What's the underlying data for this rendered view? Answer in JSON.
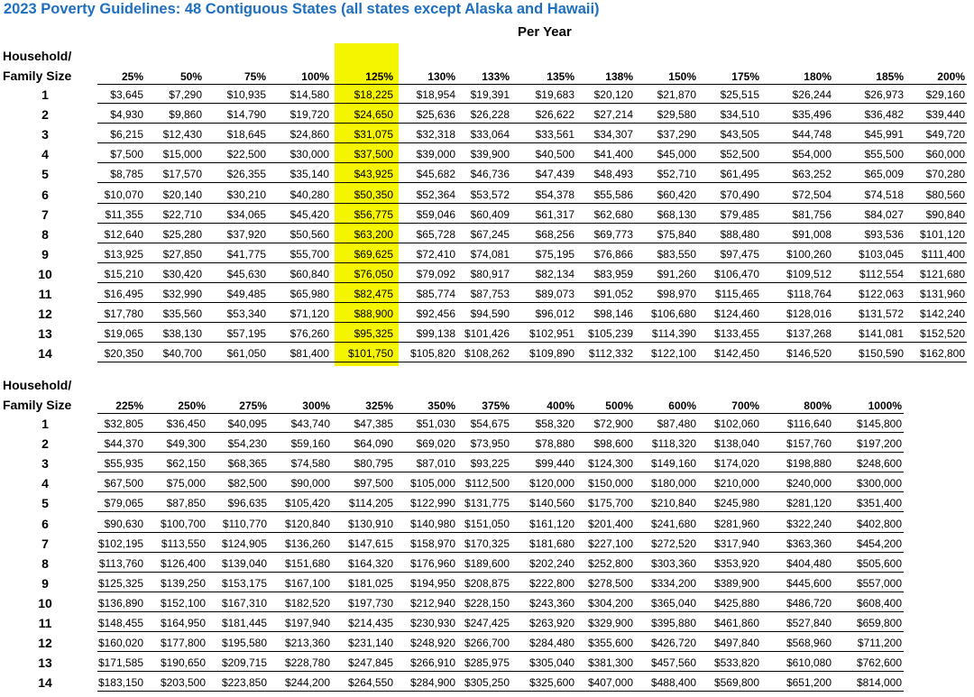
{
  "title": "2023 Poverty Guidelines: 48 Contiguous States (all states except Alaska and Hawaii)",
  "subtitle": "Per Year",
  "household_label_1": "Household/",
  "household_label_2": "Family Size",
  "highlight_color": "#f6f500",
  "title_color": "#1f6fc0",
  "table1": {
    "headers": [
      "25%",
      "50%",
      "75%",
      "100%",
      "125%",
      "130%",
      "133%",
      "135%",
      "138%",
      "150%",
      "175%",
      "180%",
      "185%",
      "200%"
    ],
    "sizes": [
      "1",
      "2",
      "3",
      "4",
      "5",
      "6",
      "7",
      "8",
      "9",
      "10",
      "11",
      "12",
      "13",
      "14"
    ],
    "rows": [
      [
        "$3,645",
        "$7,290",
        "$10,935",
        "$14,580",
        "$18,225",
        "$18,954",
        "$19,391",
        "$19,683",
        "$20,120",
        "$21,870",
        "$25,515",
        "$26,244",
        "$26,973",
        "$29,160"
      ],
      [
        "$4,930",
        "$9,860",
        "$14,790",
        "$19,720",
        "$24,650",
        "$25,636",
        "$26,228",
        "$26,622",
        "$27,214",
        "$29,580",
        "$34,510",
        "$35,496",
        "$36,482",
        "$39,440"
      ],
      [
        "$6,215",
        "$12,430",
        "$18,645",
        "$24,860",
        "$31,075",
        "$32,318",
        "$33,064",
        "$33,561",
        "$34,307",
        "$37,290",
        "$43,505",
        "$44,748",
        "$45,991",
        "$49,720"
      ],
      [
        "$7,500",
        "$15,000",
        "$22,500",
        "$30,000",
        "$37,500",
        "$39,000",
        "$39,900",
        "$40,500",
        "$41,400",
        "$45,000",
        "$52,500",
        "$54,000",
        "$55,500",
        "$60,000"
      ],
      [
        "$8,785",
        "$17,570",
        "$26,355",
        "$35,140",
        "$43,925",
        "$45,682",
        "$46,736",
        "$47,439",
        "$48,493",
        "$52,710",
        "$61,495",
        "$63,252",
        "$65,009",
        "$70,280"
      ],
      [
        "$10,070",
        "$20,140",
        "$30,210",
        "$40,280",
        "$50,350",
        "$52,364",
        "$53,572",
        "$54,378",
        "$55,586",
        "$60,420",
        "$70,490",
        "$72,504",
        "$74,518",
        "$80,560"
      ],
      [
        "$11,355",
        "$22,710",
        "$34,065",
        "$45,420",
        "$56,775",
        "$59,046",
        "$60,409",
        "$61,317",
        "$62,680",
        "$68,130",
        "$79,485",
        "$81,756",
        "$84,027",
        "$90,840"
      ],
      [
        "$12,640",
        "$25,280",
        "$37,920",
        "$50,560",
        "$63,200",
        "$65,728",
        "$67,245",
        "$68,256",
        "$69,773",
        "$75,840",
        "$88,480",
        "$91,008",
        "$93,536",
        "$101,120"
      ],
      [
        "$13,925",
        "$27,850",
        "$41,775",
        "$55,700",
        "$69,625",
        "$72,410",
        "$74,081",
        "$75,195",
        "$76,866",
        "$83,550",
        "$97,475",
        "$100,260",
        "$103,045",
        "$111,400"
      ],
      [
        "$15,210",
        "$30,420",
        "$45,630",
        "$60,840",
        "$76,050",
        "$79,092",
        "$80,917",
        "$82,134",
        "$83,959",
        "$91,260",
        "$106,470",
        "$109,512",
        "$112,554",
        "$121,680"
      ],
      [
        "$16,495",
        "$32,990",
        "$49,485",
        "$65,980",
        "$82,475",
        "$85,774",
        "$87,753",
        "$89,073",
        "$91,052",
        "$98,970",
        "$115,465",
        "$118,764",
        "$122,063",
        "$131,960"
      ],
      [
        "$17,780",
        "$35,560",
        "$53,340",
        "$71,120",
        "$88,900",
        "$92,456",
        "$94,590",
        "$96,012",
        "$98,146",
        "$106,680",
        "$124,460",
        "$128,016",
        "$131,572",
        "$142,240"
      ],
      [
        "$19,065",
        "$38,130",
        "$57,195",
        "$76,260",
        "$95,325",
        "$99,138",
        "$101,426",
        "$102,951",
        "$105,239",
        "$114,390",
        "$133,455",
        "$137,268",
        "$141,081",
        "$152,520"
      ],
      [
        "$20,350",
        "$40,700",
        "$61,050",
        "$81,400",
        "$101,750",
        "$105,820",
        "$108,262",
        "$109,890",
        "$112,332",
        "$122,100",
        "$142,450",
        "$146,520",
        "$150,590",
        "$162,800"
      ]
    ]
  },
  "table2": {
    "headers": [
      "225%",
      "250%",
      "275%",
      "300%",
      "325%",
      "350%",
      "375%",
      "400%",
      "500%",
      "600%",
      "700%",
      "800%",
      "1000%"
    ],
    "sizes": [
      "1",
      "2",
      "3",
      "4",
      "5",
      "6",
      "7",
      "8",
      "9",
      "10",
      "11",
      "12",
      "13",
      "14"
    ],
    "rows": [
      [
        "$32,805",
        "$36,450",
        "$40,095",
        "$43,740",
        "$47,385",
        "$51,030",
        "$54,675",
        "$58,320",
        "$72,900",
        "$87,480",
        "$102,060",
        "$116,640",
        "$145,800"
      ],
      [
        "$44,370",
        "$49,300",
        "$54,230",
        "$59,160",
        "$64,090",
        "$69,020",
        "$73,950",
        "$78,880",
        "$98,600",
        "$118,320",
        "$138,040",
        "$157,760",
        "$197,200"
      ],
      [
        "$55,935",
        "$62,150",
        "$68,365",
        "$74,580",
        "$80,795",
        "$87,010",
        "$93,225",
        "$99,440",
        "$124,300",
        "$149,160",
        "$174,020",
        "$198,880",
        "$248,600"
      ],
      [
        "$67,500",
        "$75,000",
        "$82,500",
        "$90,000",
        "$97,500",
        "$105,000",
        "$112,500",
        "$120,000",
        "$150,000",
        "$180,000",
        "$210,000",
        "$240,000",
        "$300,000"
      ],
      [
        "$79,065",
        "$87,850",
        "$96,635",
        "$105,420",
        "$114,205",
        "$122,990",
        "$131,775",
        "$140,560",
        "$175,700",
        "$210,840",
        "$245,980",
        "$281,120",
        "$351,400"
      ],
      [
        "$90,630",
        "$100,700",
        "$110,770",
        "$120,840",
        "$130,910",
        "$140,980",
        "$151,050",
        "$161,120",
        "$201,400",
        "$241,680",
        "$281,960",
        "$322,240",
        "$402,800"
      ],
      [
        "$102,195",
        "$113,550",
        "$124,905",
        "$136,260",
        "$147,615",
        "$158,970",
        "$170,325",
        "$181,680",
        "$227,100",
        "$272,520",
        "$317,940",
        "$363,360",
        "$454,200"
      ],
      [
        "$113,760",
        "$126,400",
        "$139,040",
        "$151,680",
        "$164,320",
        "$176,960",
        "$189,600",
        "$202,240",
        "$252,800",
        "$303,360",
        "$353,920",
        "$404,480",
        "$505,600"
      ],
      [
        "$125,325",
        "$139,250",
        "$153,175",
        "$167,100",
        "$181,025",
        "$194,950",
        "$208,875",
        "$222,800",
        "$278,500",
        "$334,200",
        "$389,900",
        "$445,600",
        "$557,000"
      ],
      [
        "$136,890",
        "$152,100",
        "$167,310",
        "$182,520",
        "$197,730",
        "$212,940",
        "$228,150",
        "$243,360",
        "$304,200",
        "$365,040",
        "$425,880",
        "$486,720",
        "$608,400"
      ],
      [
        "$148,455",
        "$164,950",
        "$181,445",
        "$197,940",
        "$214,435",
        "$230,930",
        "$247,425",
        "$263,920",
        "$329,900",
        "$395,880",
        "$461,860",
        "$527,840",
        "$659,800"
      ],
      [
        "$160,020",
        "$177,800",
        "$195,580",
        "$213,360",
        "$231,140",
        "$248,920",
        "$266,700",
        "$284,480",
        "$355,600",
        "$426,720",
        "$497,840",
        "$568,960",
        "$711,200"
      ],
      [
        "$171,585",
        "$190,650",
        "$209,715",
        "$228,780",
        "$247,845",
        "$266,910",
        "$285,975",
        "$305,040",
        "$381,300",
        "$457,560",
        "$533,820",
        "$610,080",
        "$762,600"
      ],
      [
        "$183,150",
        "$203,500",
        "$223,850",
        "$244,200",
        "$264,550",
        "$284,900",
        "$305,250",
        "$325,600",
        "$407,000",
        "$488,400",
        "$569,800",
        "$651,200",
        "$814,000"
      ]
    ]
  }
}
